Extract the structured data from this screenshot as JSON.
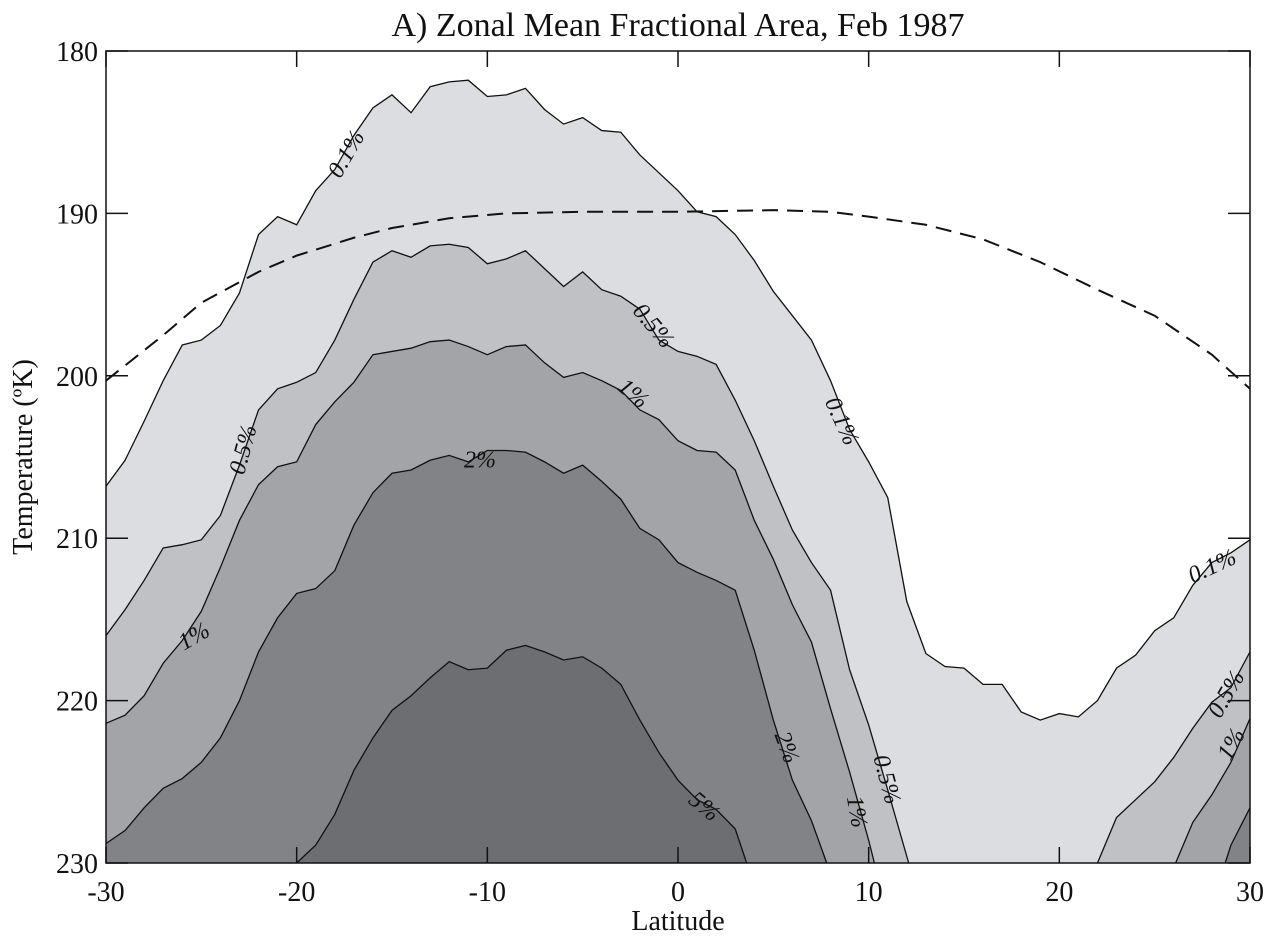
{
  "chart_data": {
    "type": "contour",
    "title": "A) Zonal Mean Fractional Area, Feb 1987",
    "xlabel": "Latitude",
    "ylabel": "Temperature (ºK)",
    "xlim": [
      -30,
      30
    ],
    "ylim": [
      180,
      230
    ],
    "yreverse": true,
    "xticks": [
      -30,
      -20,
      -10,
      0,
      10,
      20,
      30
    ],
    "yticks": [
      180,
      190,
      200,
      210,
      220,
      230
    ],
    "series": [
      {
        "name": "0.1%",
        "color": "#dcdde0",
        "x": [
          -30,
          -29,
          -28,
          -27,
          -26,
          -25,
          -24,
          -23,
          -22,
          -21,
          -20,
          -19,
          -18,
          -17,
          -16,
          -15,
          -14,
          -13,
          -12,
          -11,
          -10,
          -9,
          -8,
          -7,
          -6,
          -5,
          -4,
          -3,
          -2,
          -1,
          0,
          1,
          2,
          3,
          4,
          5,
          6,
          7,
          8,
          9,
          10,
          11,
          12,
          13,
          14,
          15,
          16,
          17,
          18,
          19,
          20,
          21,
          22,
          23,
          24,
          25,
          26,
          27,
          28,
          29,
          30
        ],
        "values": [
          206.8,
          205.2,
          202.8,
          200.3,
          198.1,
          197.8,
          196.9,
          194.9,
          191.3,
          190.2,
          190.7,
          188.6,
          187.3,
          185.2,
          183.5,
          182.7,
          183.8,
          182.2,
          181.9,
          181.8,
          182.8,
          182.7,
          182.3,
          183.6,
          184.5,
          184.1,
          184.9,
          185.0,
          186.4,
          187.5,
          188.6,
          189.9,
          190.2,
          191.3,
          192.9,
          194.8,
          196.3,
          197.8,
          200.3,
          203.3,
          205.3,
          207.5,
          213.9,
          217.1,
          217.9,
          218.0,
          219.0,
          219.0,
          220.7,
          221.2,
          220.8,
          221.0,
          220.0,
          218.0,
          217.2,
          215.7,
          214.9,
          212.9,
          211.5,
          210.9,
          210.1
        ]
      },
      {
        "name": "0.5%",
        "color": "#c0c1c4",
        "x": [
          -30,
          -29,
          -28,
          -27,
          -26,
          -25,
          -24,
          -23,
          -22,
          -21,
          -20,
          -19,
          -18,
          -17,
          -16,
          -15,
          -14,
          -13,
          -12,
          -11,
          -10,
          -9,
          -8,
          -7,
          -6,
          -5,
          -4,
          -3,
          -2,
          -1,
          0,
          1,
          2,
          3,
          4,
          5,
          6,
          7,
          8,
          9,
          10,
          11,
          12.1,
          null,
          22,
          23,
          24,
          25,
          26,
          27,
          28,
          29,
          30
        ],
        "values": [
          216.0,
          214.4,
          212.6,
          210.6,
          210.4,
          210.1,
          208.6,
          205.5,
          202.1,
          200.8,
          200.4,
          199.8,
          197.8,
          195.3,
          193.0,
          192.3,
          192.7,
          192.0,
          191.9,
          192.1,
          193.1,
          192.8,
          192.3,
          193.4,
          194.5,
          193.6,
          194.7,
          195.1,
          195.9,
          197.8,
          198.5,
          198.8,
          199.3,
          201.5,
          204.0,
          206.8,
          209.5,
          211.5,
          213.2,
          218.1,
          221.5,
          225.5,
          230,
          null,
          230,
          227.2,
          226.1,
          225.0,
          223.5,
          221.7,
          220.1,
          219.2,
          217.0
        ]
      },
      {
        "name": "1%",
        "color": "#a3a4a7",
        "x": [
          -30,
          -29,
          -28,
          -27,
          -26,
          -25,
          -24,
          -23,
          -22,
          -21,
          -20,
          -19,
          -18,
          -17,
          -16,
          -15,
          -14,
          -13,
          -12,
          -11,
          -10,
          -9,
          -8,
          -7,
          -6,
          -5,
          -4,
          -3,
          -2,
          -1,
          0,
          1,
          2,
          3,
          4,
          5,
          6,
          7,
          8,
          9,
          10,
          10.3,
          null,
          26.1,
          27,
          28,
          29,
          30
        ],
        "values": [
          221.4,
          220.9,
          219.7,
          217.7,
          216.3,
          214.5,
          211.8,
          208.9,
          206.7,
          205.6,
          205.3,
          203.0,
          201.6,
          200.4,
          198.7,
          198.5,
          198.3,
          197.9,
          197.8,
          198.2,
          198.7,
          198.2,
          198.1,
          199.2,
          200.1,
          199.8,
          200.3,
          200.9,
          202.1,
          202.7,
          204.0,
          204.6,
          204.7,
          205.8,
          208.9,
          211.3,
          214.1,
          216.4,
          220.5,
          224.4,
          228.6,
          230,
          null,
          230,
          227.5,
          225.8,
          223.8,
          221.1
        ]
      },
      {
        "name": "2%",
        "color": "#828386",
        "x": [
          -30,
          -29,
          -28,
          -27,
          -26,
          -25,
          -24,
          -23,
          -22,
          -21,
          -20,
          -19,
          -18,
          -17,
          -16,
          -15,
          -14,
          -13,
          -12,
          -11,
          -10,
          -9,
          -8,
          -7,
          -6,
          -5,
          -4,
          -3,
          -2,
          -1,
          0,
          1,
          2,
          3,
          4,
          5,
          6,
          7,
          7.8,
          null,
          28.7,
          29,
          30
        ],
        "values": [
          228.8,
          228.0,
          226.6,
          225.4,
          224.8,
          223.8,
          222.3,
          220.0,
          217.0,
          214.9,
          213.4,
          213.1,
          212.0,
          209.2,
          207.2,
          206.0,
          205.8,
          205.2,
          204.9,
          205.3,
          204.6,
          204.6,
          204.7,
          205.3,
          206.0,
          205.5,
          206.5,
          207.6,
          209.4,
          210.1,
          211.5,
          212.1,
          212.6,
          213.2,
          216.9,
          221.2,
          224.9,
          227.4,
          230,
          null,
          230,
          228.9,
          226.6
        ]
      },
      {
        "name": "5%",
        "color": "#6d6e72",
        "x": [
          -20,
          -19,
          -18,
          -17,
          -16,
          -15,
          -14,
          -13,
          -12,
          -11,
          -10,
          -9,
          -8,
          -7,
          -6,
          -5,
          -4,
          -3,
          -2,
          -1,
          0,
          1,
          2,
          3,
          3.6
        ],
        "values": [
          230,
          228.9,
          227.0,
          224.3,
          222.3,
          220.6,
          219.7,
          218.6,
          217.6,
          218.1,
          218.0,
          216.9,
          216.6,
          217.0,
          217.5,
          217.3,
          218.0,
          219.0,
          221.2,
          223.2,
          224.9,
          226.1,
          226.7,
          227.9,
          230
        ]
      }
    ],
    "reference_line": {
      "style": "dashed",
      "x": [
        -30,
        -27,
        -25,
        -22,
        -20,
        -17,
        -15,
        -12,
        -9,
        -5,
        0,
        5,
        8,
        10,
        13,
        16,
        19,
        22,
        25,
        28,
        30
      ],
      "values": [
        200.3,
        197.5,
        195.5,
        193.6,
        192.6,
        191.5,
        190.9,
        190.3,
        190.0,
        189.9,
        189.9,
        189.8,
        189.9,
        190.2,
        190.7,
        191.6,
        193.0,
        194.7,
        196.3,
        198.7,
        200.8
      ]
    }
  }
}
